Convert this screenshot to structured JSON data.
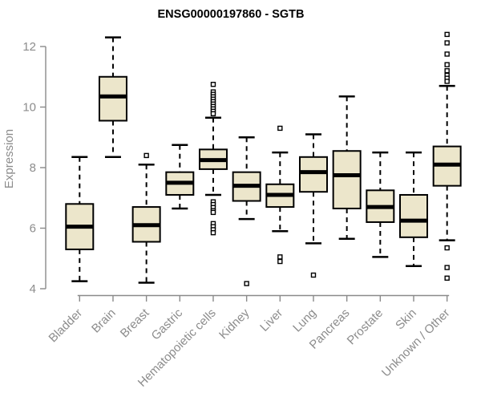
{
  "chart_data": {
    "type": "boxplot",
    "title": "ENSG00000197860 - SGTB",
    "xlabel": "",
    "ylabel": "Expression",
    "ylim": [
      4,
      12.6
    ],
    "yticks": [
      4,
      6,
      8,
      10,
      12
    ],
    "grid": false,
    "legend": "none",
    "categories": [
      "Bladder",
      "Brain",
      "Breast",
      "Gastric",
      "Hematopoietic cells",
      "Kidney",
      "Liver",
      "Lung",
      "Pancreas",
      "Prostate",
      "Skin",
      "Unknown / Other"
    ],
    "boxes": [
      {
        "category": "Bladder",
        "low": 4.25,
        "q1": 5.3,
        "median": 6.05,
        "q3": 6.8,
        "high": 8.35,
        "outliers": []
      },
      {
        "category": "Brain",
        "low": 8.35,
        "q1": 9.55,
        "median": 10.35,
        "q3": 11.0,
        "high": 12.3,
        "outliers": []
      },
      {
        "category": "Breast",
        "low": 4.2,
        "q1": 5.55,
        "median": 6.1,
        "q3": 6.7,
        "high": 8.1,
        "outliers": [
          8.4
        ]
      },
      {
        "category": "Gastric",
        "low": 6.65,
        "q1": 7.1,
        "median": 7.5,
        "q3": 7.85,
        "high": 8.75,
        "outliers": []
      },
      {
        "category": "Hematopoietic cells",
        "low": 7.1,
        "q1": 7.95,
        "median": 8.25,
        "q3": 8.6,
        "high": 9.65,
        "outliers": [
          10.75,
          10.5,
          10.42,
          10.34,
          10.26,
          10.18,
          10.1,
          10.02,
          9.94,
          9.86,
          9.78,
          6.87,
          6.78,
          6.68,
          6.58,
          6.52,
          6.15,
          6.05,
          5.95,
          5.85
        ]
      },
      {
        "category": "Kidney",
        "low": 6.3,
        "q1": 6.9,
        "median": 7.4,
        "q3": 7.85,
        "high": 9.0,
        "outliers": [
          4.17
        ]
      },
      {
        "category": "Liver",
        "low": 5.9,
        "q1": 6.7,
        "median": 7.1,
        "q3": 7.45,
        "high": 8.5,
        "outliers": [
          9.3,
          5.05,
          4.9
        ]
      },
      {
        "category": "Lung",
        "low": 5.5,
        "q1": 7.2,
        "median": 7.85,
        "q3": 8.35,
        "high": 9.1,
        "outliers": [
          4.45
        ]
      },
      {
        "category": "Pancreas",
        "low": 5.65,
        "q1": 6.65,
        "median": 7.75,
        "q3": 8.55,
        "high": 10.35,
        "outliers": []
      },
      {
        "category": "Prostate",
        "low": 5.05,
        "q1": 6.2,
        "median": 6.7,
        "q3": 7.25,
        "high": 8.5,
        "outliers": []
      },
      {
        "category": "Skin",
        "low": 4.75,
        "q1": 5.7,
        "median": 6.25,
        "q3": 7.1,
        "high": 8.5,
        "outliers": []
      },
      {
        "category": "Unknown / Other",
        "low": 5.6,
        "q1": 7.4,
        "median": 8.1,
        "q3": 8.7,
        "high": 10.7,
        "outliers": [
          12.4,
          12.12,
          11.75,
          11.4,
          11.2,
          11.05,
          10.95,
          10.85,
          5.35,
          4.7,
          4.35
        ]
      }
    ]
  },
  "style": {
    "background": "#ffffff",
    "box_fill": "#ece6cb",
    "box_border": "#000000",
    "median_color": "#000000",
    "whisker_color": "#000000",
    "outlier_fill": "#ffffff",
    "axis_color": "#8a8a8a",
    "tick_label_color": "#8c8c8c",
    "title_color": "#000000"
  }
}
